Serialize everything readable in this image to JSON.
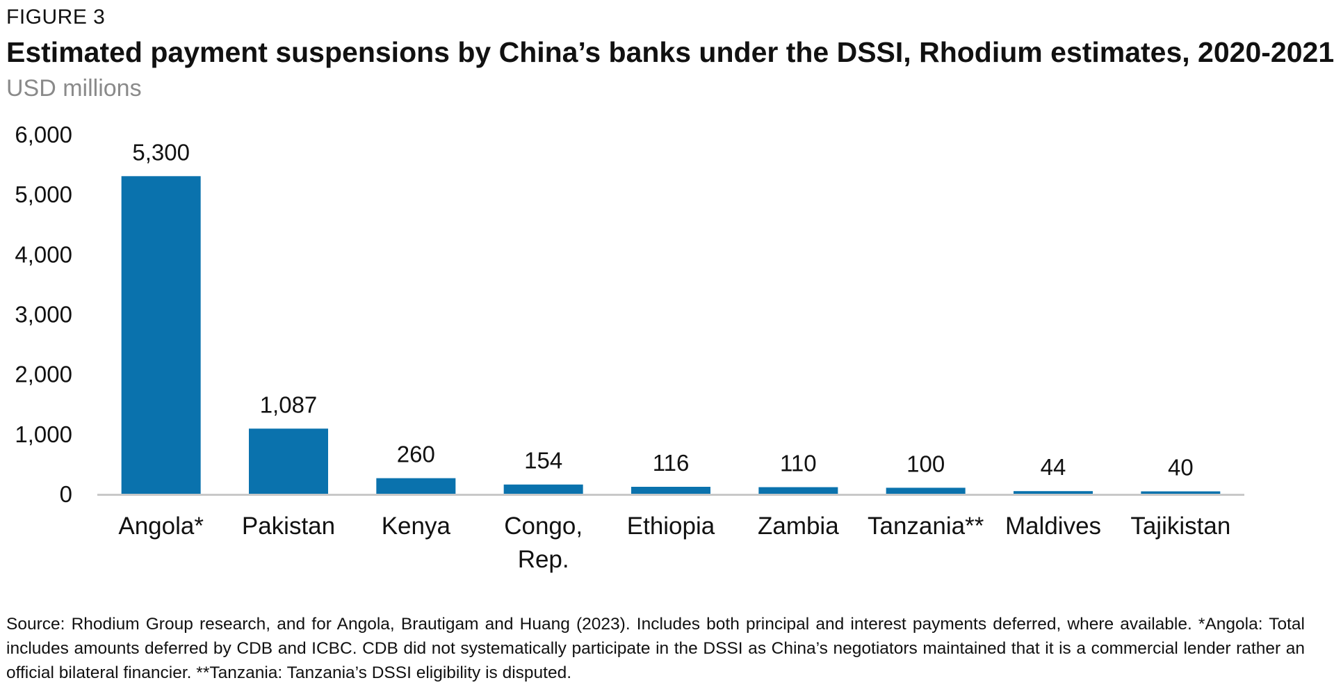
{
  "figure_label": "FIGURE 3",
  "chart_data": {
    "type": "bar",
    "title": "Estimated payment suspensions by China’s banks under the DSSI, Rhodium estimates, 2020-2021",
    "subtitle": "USD millions",
    "categories": [
      [
        "Angola*"
      ],
      [
        "Pakistan"
      ],
      [
        "Kenya"
      ],
      [
        "Congo,",
        "Rep."
      ],
      [
        "Ethiopia"
      ],
      [
        "Zambia"
      ],
      [
        "Tanzania**"
      ],
      [
        "Maldives"
      ],
      [
        "Tajikistan"
      ]
    ],
    "values": [
      5300,
      1087,
      260,
      154,
      116,
      110,
      100,
      44,
      40
    ],
    "data_labels": [
      "5,300",
      "1,087",
      "260",
      "154",
      "116",
      "110",
      "100",
      "44",
      "40"
    ],
    "ylim": [
      0,
      6000
    ],
    "yticks": [
      0,
      1000,
      2000,
      3000,
      4000,
      5000,
      6000
    ],
    "ytick_labels": [
      "0",
      "1,000",
      "2,000",
      "3,000",
      "4,000",
      "5,000",
      "6,000"
    ],
    "xlabel": "",
    "ylabel": "",
    "grid": false,
    "bar_color": "#0a72ad",
    "axis_color": "#c8c8c8"
  },
  "source_note": "Source: Rhodium Group research, and for Angola, Brautigam and Huang (2023). Includes both principal and interest payments deferred, where available. *Angola: Total includes amounts deferred by CDB and ICBC. CDB did not systematically participate in the DSSI as China’s negotiators maintained that it is a commercial lender rather an official bilateral financier. **Tanzania: Tanzania’s DSSI eligibility is disputed."
}
